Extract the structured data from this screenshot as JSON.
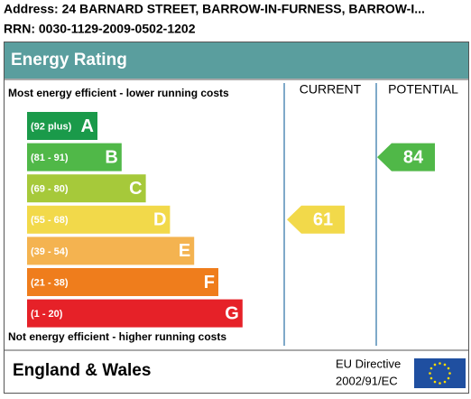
{
  "header": {
    "address": "Address: 24 BARNARD STREET, BARROW-IN-FURNESS, BARROW-I...",
    "rrn": "RRN: 0030-1129-2009-0502-1202"
  },
  "title": "Energy Rating",
  "top_note": "Most energy efficient - lower running costs",
  "bottom_note": "Not energy efficient - higher running costs",
  "columns": [
    "CURRENT",
    "POTENTIAL"
  ],
  "bands": [
    {
      "range": "(92 plus)",
      "letter": "A",
      "color": "#1a9a4a"
    },
    {
      "range": "(81 - 91)",
      "letter": "B",
      "color": "#50b848"
    },
    {
      "range": "(69 - 80)",
      "letter": "C",
      "color": "#a6c93a"
    },
    {
      "range": "(55 - 68)",
      "letter": "D",
      "color": "#f2d94a"
    },
    {
      "range": "(39 - 54)",
      "letter": "E",
      "color": "#f4b350"
    },
    {
      "range": "(21 - 38)",
      "letter": "F",
      "color": "#ef7d1c"
    },
    {
      "range": "(1 - 20)",
      "letter": "G",
      "color": "#e62128"
    }
  ],
  "ratings": [
    {
      "value": 61,
      "band": "D"
    },
    {
      "value": 84,
      "band": "B"
    }
  ],
  "footer": {
    "region": "England & Wales",
    "directive": [
      "EU Directive",
      "2002/91/EC"
    ]
  }
}
